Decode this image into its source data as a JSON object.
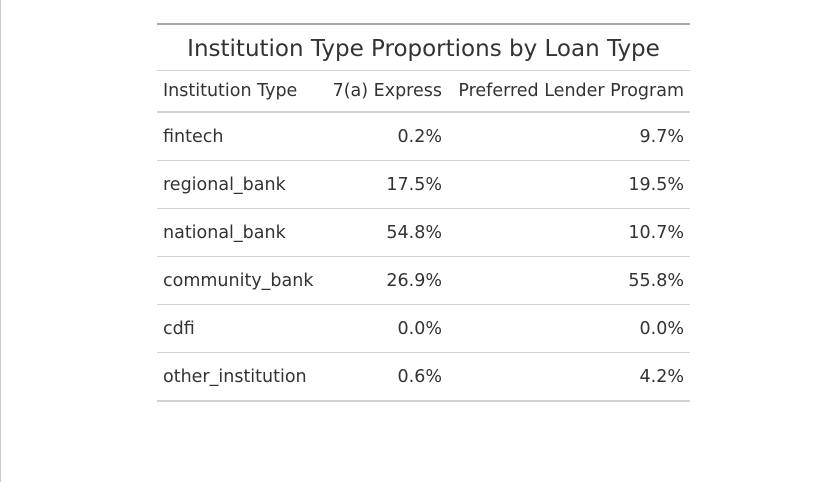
{
  "chart_data": {
    "type": "table",
    "title": "Institution Type Proportions by Loan Type",
    "columns": [
      "Institution Type",
      "7(a) Express",
      "Preferred Lender Program"
    ],
    "rows": [
      {
        "institution_type": "fintech",
        "express": "0.2%",
        "plp": "9.7%"
      },
      {
        "institution_type": "regional_bank",
        "express": "17.5%",
        "plp": "19.5%"
      },
      {
        "institution_type": "national_bank",
        "express": "54.8%",
        "plp": "10.7%"
      },
      {
        "institution_type": "community_bank",
        "express": "26.9%",
        "plp": "55.8%"
      },
      {
        "institution_type": "cdfi",
        "express": "0.0%",
        "plp": "0.0%"
      },
      {
        "institution_type": "other_institution",
        "express": "0.6%",
        "plp": "4.2%"
      }
    ]
  },
  "colors": {
    "text": "#333333",
    "rule": "#d3d3d3",
    "top_rule": "#a8a8a8"
  }
}
